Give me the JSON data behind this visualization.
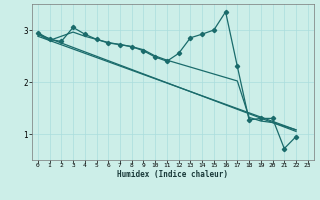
{
  "title": "",
  "xlabel": "Humidex (Indice chaleur)",
  "ylabel": "",
  "bg_color": "#cceee8",
  "line_color": "#1a6b6b",
  "grid_color": "#aadddd",
  "xlim": [
    -0.5,
    23.5
  ],
  "ylim": [
    0.5,
    3.5
  ],
  "yticks": [
    1,
    2,
    3
  ],
  "xticks": [
    0,
    1,
    2,
    3,
    4,
    5,
    6,
    7,
    8,
    9,
    10,
    11,
    12,
    13,
    14,
    15,
    16,
    17,
    18,
    19,
    20,
    21,
    22,
    23
  ],
  "lines": [
    {
      "x": [
        0,
        1,
        2,
        3,
        4,
        5,
        6,
        7,
        8,
        9,
        10,
        11,
        12,
        13,
        14,
        15,
        16,
        17,
        18,
        19,
        20,
        21,
        22
      ],
      "y": [
        2.95,
        2.82,
        2.78,
        3.05,
        2.92,
        2.82,
        2.75,
        2.72,
        2.68,
        2.6,
        2.48,
        2.4,
        2.55,
        2.85,
        2.92,
        3.0,
        3.35,
        2.3,
        1.27,
        1.3,
        1.3,
        0.72,
        0.95
      ],
      "marker": true
    },
    {
      "x": [
        0,
        22
      ],
      "y": [
        2.92,
        1.05
      ],
      "marker": false
    },
    {
      "x": [
        0,
        22
      ],
      "y": [
        2.88,
        1.08
      ],
      "marker": false
    },
    {
      "x": [
        0,
        1,
        2,
        3,
        4,
        5,
        6,
        7,
        8,
        9,
        10,
        11,
        17,
        18,
        19,
        20,
        21,
        22
      ],
      "y": [
        2.92,
        2.8,
        2.88,
        2.96,
        2.88,
        2.82,
        2.76,
        2.72,
        2.68,
        2.62,
        2.5,
        2.42,
        2.02,
        1.32,
        1.25,
        1.22,
        1.15,
        1.08
      ],
      "marker": false
    }
  ]
}
